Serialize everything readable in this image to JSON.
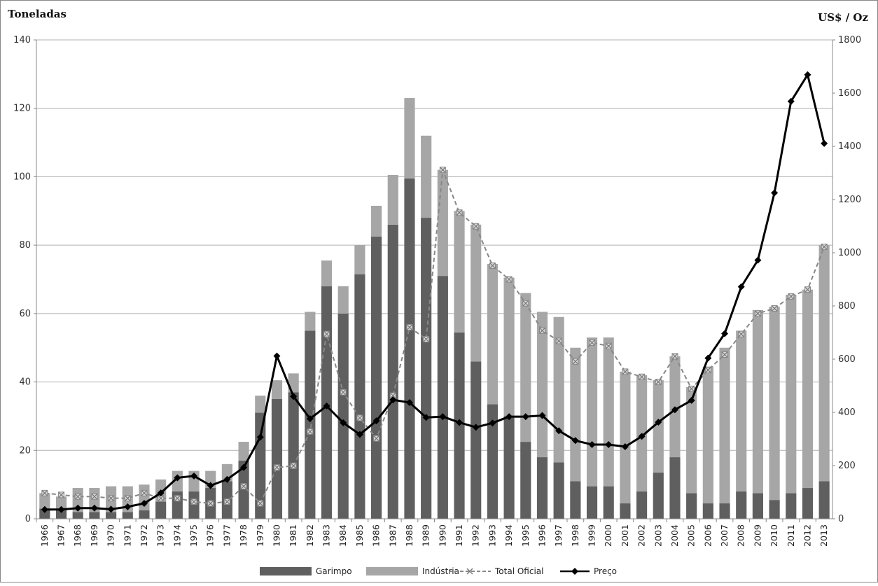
{
  "chart_data": {
    "type": "bar",
    "title": "",
    "ylabel": "Toneladas",
    "y2label": "US$ / Oz",
    "ylim": [
      0,
      140
    ],
    "y2lim": [
      0,
      1800
    ],
    "yticks": [
      0,
      20,
      40,
      60,
      80,
      100,
      120,
      140
    ],
    "y2ticks": [
      0,
      200,
      400,
      600,
      800,
      1000,
      1200,
      1400,
      1600,
      1800
    ],
    "grid": true,
    "legend_position": "bottom",
    "categories": [
      "1966",
      "1967",
      "1968",
      "1969",
      "1970",
      "1971",
      "1972",
      "1973",
      "1974",
      "1975",
      "1976",
      "1977",
      "1978",
      "1979",
      "1980",
      "1981",
      "1982",
      "1983",
      "1984",
      "1985",
      "1986",
      "1987",
      "1988",
      "1989",
      "1990",
      "1991",
      "1992",
      "1993",
      "1994",
      "1995",
      "1996",
      "1997",
      "1998",
      "1999",
      "2000",
      "2001",
      "2002",
      "2003",
      "2004",
      "2005",
      "2006",
      "2007",
      "2008",
      "2009",
      "2010",
      "2011",
      "2012",
      "2013"
    ],
    "series": [
      {
        "name": "Garimpo",
        "kind": "stacked-bar",
        "axis": "left",
        "color": "#5f5f5f",
        "values": [
          3,
          3,
          2,
          2,
          2,
          2,
          2.5,
          5,
          8,
          8,
          9,
          11,
          17,
          31,
          35,
          37,
          55,
          68,
          60,
          71.5,
          82.5,
          86,
          99.5,
          88,
          71,
          54.5,
          46,
          33.5,
          30,
          22.5,
          18,
          16.5,
          11,
          9.5,
          9.5,
          4.5,
          8,
          13.5,
          18,
          7.5,
          4.5,
          4.5,
          8,
          7.5,
          5.5,
          7.5,
          9,
          11
        ]
      },
      {
        "name": "Indústria",
        "kind": "stacked-bar",
        "axis": "left",
        "color": "#a6a6a6",
        "values": [
          4.5,
          3.5,
          7,
          7,
          7.5,
          7.5,
          7.5,
          6.5,
          6,
          6,
          5,
          5,
          5.5,
          5,
          5.5,
          5.5,
          5.5,
          7.5,
          8,
          8.5,
          9,
          14.5,
          23.5,
          24,
          31,
          35.5,
          40,
          41,
          40.5,
          43.5,
          42.5,
          42.5,
          39,
          43.5,
          43.5,
          38.5,
          34,
          27,
          29.5,
          31,
          40,
          45.5,
          47,
          53.5,
          56.5,
          58,
          58,
          69
        ]
      },
      {
        "name": "Total Oficial",
        "kind": "dashed-line",
        "axis": "left",
        "color": "#888888",
        "values": [
          7.5,
          7,
          6.5,
          6.5,
          6,
          6,
          7.5,
          6,
          6,
          5,
          4.5,
          5,
          9.5,
          4.5,
          15,
          15.5,
          25.5,
          54,
          37,
          29.5,
          23.5,
          36,
          56,
          52.5,
          102,
          89.5,
          85.5,
          74,
          70,
          63,
          55,
          52,
          46,
          51.5,
          50.5,
          43,
          41.5,
          40,
          47.5,
          38,
          43.5,
          48,
          54,
          60,
          61.5,
          65,
          67,
          79.5
        ]
      },
      {
        "name": "Preço",
        "kind": "line",
        "axis": "right",
        "color": "#000000",
        "values": [
          35,
          35,
          40,
          40,
          36,
          45,
          58,
          97,
          154,
          161,
          125,
          148,
          193,
          307,
          612,
          460,
          376,
          424,
          361,
          317,
          368,
          447,
          437,
          381,
          384,
          362,
          344,
          360,
          384,
          384,
          388,
          331,
          294,
          279,
          279,
          271,
          310,
          363,
          410,
          445,
          604,
          696,
          872,
          972,
          1225,
          1569,
          1669,
          1411
        ]
      }
    ]
  }
}
